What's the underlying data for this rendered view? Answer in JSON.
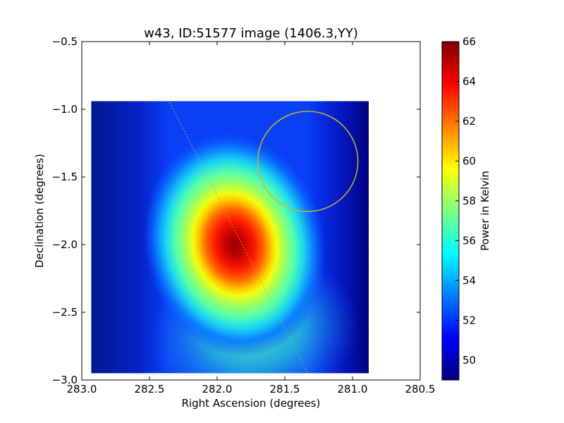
{
  "chart_data": {
    "type": "heatmap",
    "title": "w43, ID:51577 image (1406.3,YY)",
    "xlabel": "Right Ascension (degrees)",
    "ylabel": "Declination (degrees)",
    "xlim": [
      283.0,
      280.5
    ],
    "ylim": [
      -3.0,
      -0.5
    ],
    "x_ticks": [
      283.0,
      282.5,
      282.0,
      281.5,
      281.0,
      280.5
    ],
    "x_tick_labels": [
      "283.0",
      "282.5",
      "282.0",
      "281.5",
      "281.0",
      "280.5"
    ],
    "y_ticks": [
      -0.5,
      -1.0,
      -1.5,
      -2.0,
      -2.5,
      -3.0
    ],
    "y_tick_labels": [
      "−0.5",
      "−1.0",
      "−1.5",
      "−2.0",
      "−2.5",
      "−3.0"
    ],
    "image_extent": {
      "x": [
        282.93,
        280.88
      ],
      "y": [
        -2.95,
        -0.94
      ]
    },
    "peak": {
      "ra": 281.87,
      "dec": -2.0,
      "value": 66
    },
    "background_value": 49,
    "circle": {
      "center_ra": 281.33,
      "center_dec": -1.385,
      "radius_deg": 0.37,
      "color": "#c8b432"
    },
    "dotted_line": {
      "from": [
        282.35,
        -0.95
      ],
      "to": [
        281.33,
        -2.95
      ],
      "color": "#b4b43c"
    },
    "colorbar": {
      "label": "Power in Kelvin",
      "range": [
        49,
        66
      ],
      "ticks": [
        50,
        52,
        54,
        56,
        58,
        60,
        62,
        64,
        66
      ],
      "tick_labels": [
        "50",
        "52",
        "54",
        "56",
        "58",
        "60",
        "62",
        "64",
        "66"
      ],
      "colormap": "jet"
    }
  }
}
